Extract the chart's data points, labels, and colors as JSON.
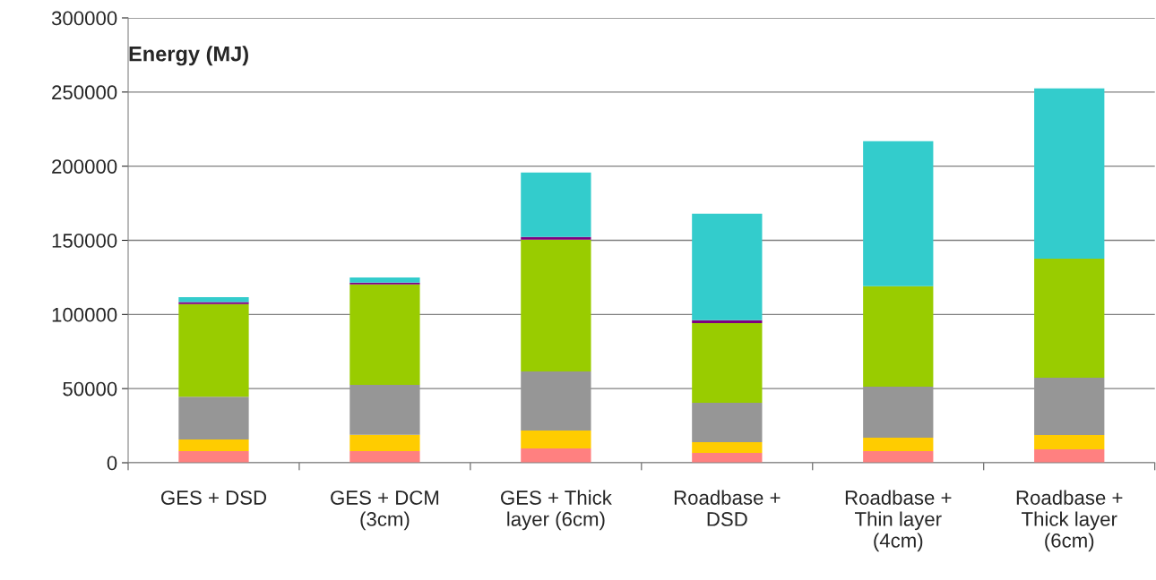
{
  "chart_data": {
    "type": "bar",
    "stacked": true,
    "ylabel": "Energy (MJ)",
    "categories": [
      "GES + DSD",
      "GES + DCM (3cm)",
      "GES + Thick layer (6cm)",
      "Roadbase + DSD",
      "Roadbase + Thin layer (4cm)",
      "Roadbase + Thick layer (6cm)"
    ],
    "series": [
      {
        "color": "#ff8080",
        "values": [
          7800,
          7800,
          9700,
          6600,
          7900,
          9100
        ]
      },
      {
        "color": "#ffcc00",
        "values": [
          7900,
          11100,
          12000,
          7300,
          9000,
          9600
        ]
      },
      {
        "color": "#969696",
        "values": [
          28800,
          33600,
          39900,
          26600,
          34400,
          38700
        ]
      },
      {
        "color": "#99cc00",
        "values": [
          62500,
          67700,
          88800,
          53700,
          67700,
          80300
        ]
      },
      {
        "color": "#800080",
        "values": [
          1400,
          1300,
          1800,
          2000,
          0,
          0
        ]
      },
      {
        "color": "#33cccc",
        "values": [
          3300,
          3500,
          43500,
          71700,
          97800,
          114800
        ]
      }
    ],
    "ylim": [
      0,
      300000
    ],
    "yticks": [
      0,
      50000,
      100000,
      150000,
      200000,
      250000,
      300000
    ],
    "grid": "y",
    "legend": false
  }
}
